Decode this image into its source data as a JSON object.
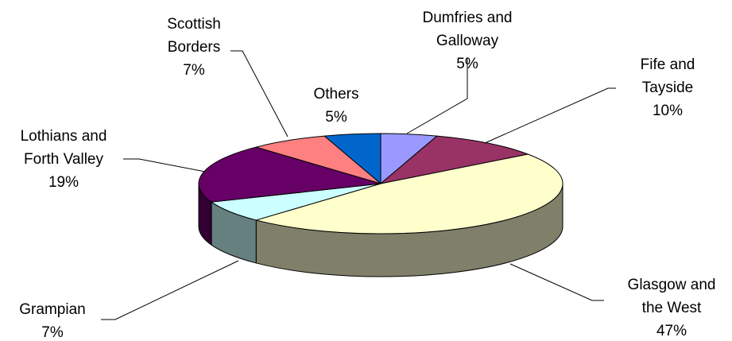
{
  "chart_data": {
    "type": "pie",
    "three_d": true,
    "title": "",
    "categories": [
      "Dumfries and Galloway",
      "Fife and Tayside",
      "Glasgow and the West",
      "Grampian",
      "Lothians and Forth Valley",
      "Scottish Borders",
      "Others"
    ],
    "values": [
      5,
      10,
      47,
      7,
      19,
      7,
      5
    ],
    "unit": "%",
    "colors": [
      "#9999ff",
      "#993366",
      "#ffffcc",
      "#ccffff",
      "#660066",
      "#ff8080",
      "#0066cc"
    ],
    "side_colors": [
      "#6b6bb3",
      "#6b2447",
      "#80806a",
      "#668080",
      "#330033",
      "#b35a5a",
      "#004790"
    ],
    "labels": [
      {
        "lines": [
          "Dumfries and",
          "Galloway"
        ],
        "pct": "5%"
      },
      {
        "lines": [
          "Fife and",
          "Tayside"
        ],
        "pct": "10%"
      },
      {
        "lines": [
          "Glasgow and",
          "the West"
        ],
        "pct": "47%"
      },
      {
        "lines": [
          "Grampian"
        ],
        "pct": "7%"
      },
      {
        "lines": [
          "Lothians and",
          "Forth Valley"
        ],
        "pct": "19%"
      },
      {
        "lines": [
          "Scottish",
          "Borders"
        ],
        "pct": "7%"
      },
      {
        "lines": [
          "Others"
        ],
        "pct": "5%"
      }
    ],
    "legend": "none"
  }
}
